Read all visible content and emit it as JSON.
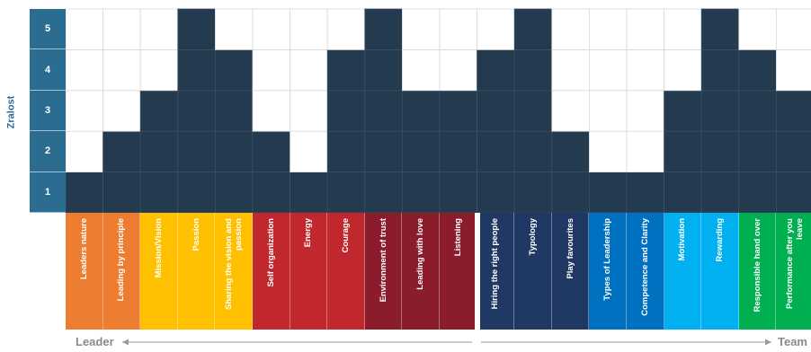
{
  "chart_data": {
    "type": "heatmap",
    "ylabel": "Zralost",
    "levels": [
      "1",
      "2",
      "3",
      "4",
      "5"
    ],
    "categories": [
      {
        "label": "Leaders nature",
        "value": 1,
        "color": "#ed7d31"
      },
      {
        "label": "Leading by principle",
        "value": 2,
        "color": "#ed7d31"
      },
      {
        "label": "Mission/Vision",
        "value": 3,
        "color": "#ffc000"
      },
      {
        "label": "Passion",
        "value": 5,
        "color": "#ffc000"
      },
      {
        "label": "Sharing the vision and passion",
        "value": 4,
        "color": "#ffc000"
      },
      {
        "label": "Self organization",
        "value": 2,
        "color": "#c0282d"
      },
      {
        "label": "Energy",
        "value": 1,
        "color": "#c0282d"
      },
      {
        "label": "Courage",
        "value": 4,
        "color": "#c0282d"
      },
      {
        "label": "Environment of trust",
        "value": 5,
        "color": "#8b1c2c"
      },
      {
        "label": "Leading with love",
        "value": 3,
        "color": "#8b1c2c"
      },
      {
        "label": "Listening",
        "value": 3,
        "color": "#8b1c2c"
      },
      {
        "label": "Hiring the right people",
        "value": 4,
        "color": "#1f3864"
      },
      {
        "label": "Typology",
        "value": 5,
        "color": "#1f3864"
      },
      {
        "label": "Play favourites",
        "value": 2,
        "color": "#1f3864"
      },
      {
        "label": "Types of Leadership",
        "value": 1,
        "color": "#0070c0"
      },
      {
        "label": "Competence and Clarity",
        "value": 1,
        "color": "#0070c0"
      },
      {
        "label": "Motivation",
        "value": 3,
        "color": "#00b0f0"
      },
      {
        "label": "Rewarding",
        "value": 5,
        "color": "#00b0f0"
      },
      {
        "label": "Responsible hand over",
        "value": 4,
        "color": "#00b050"
      },
      {
        "label": "Performance after you leave",
        "value": 3,
        "color": "#00b050"
      }
    ],
    "axis_left": "Leader",
    "axis_right": "Team",
    "filled_color": "#233a4f",
    "empty_color": "#ffffff",
    "level_color": "#2b6d91"
  }
}
